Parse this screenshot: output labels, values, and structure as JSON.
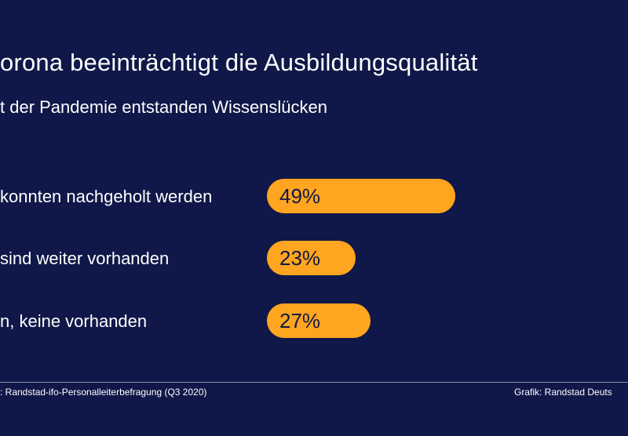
{
  "chart_data": {
    "type": "bar",
    "orientation": "horizontal",
    "title": "orona beeinträchtigt die Ausbildungsqualität",
    "subtitle": "t der Pandemie entstanden Wissenslücken",
    "categories": [
      "konnten nachgeholt werden",
      "sind weiter vorhanden",
      "n, keine vorhanden"
    ],
    "values": [
      49,
      23,
      27
    ],
    "value_labels": [
      "49%",
      "23%",
      "27%"
    ],
    "unit": "%",
    "bar_color": "#ffa51f",
    "background_color": "#0f1848",
    "grid": false
  },
  "footer": {
    "source": ": Randstad-ifo-Personalleiterbefragung (Q3 2020)",
    "credit": "Grafik: Randstad Deuts"
  }
}
